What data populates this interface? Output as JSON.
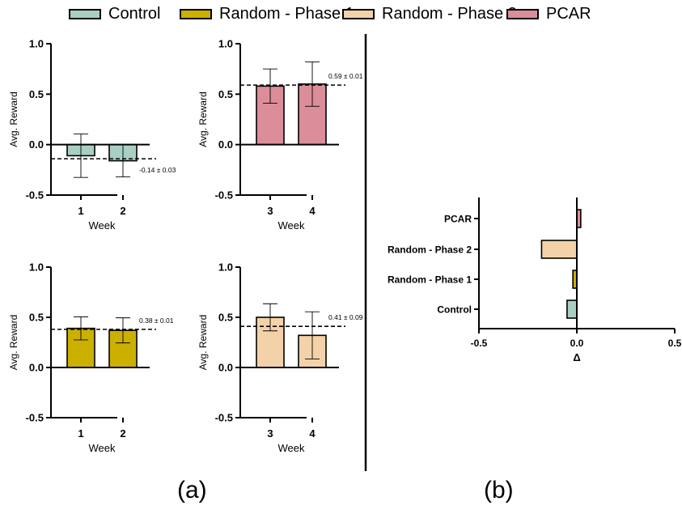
{
  "legend": [
    {
      "label": "Control",
      "color": "#a9cfc4"
    },
    {
      "label": "Random - Phase 1",
      "color": "#ccb000"
    },
    {
      "label": "Random - Phase 2",
      "color": "#f4d2a9"
    },
    {
      "label": "PCAR",
      "color": "#db8e99"
    }
  ],
  "captions": {
    "a": "(a)",
    "b": "(b)"
  },
  "chart_data": [
    {
      "type": "bar",
      "panel": "a-top-left",
      "categories": [
        "1",
        "2"
      ],
      "series": [
        {
          "name": "Control",
          "values": [
            -0.11,
            -0.16
          ],
          "errors": [
            0.215,
            0.16
          ]
        }
      ],
      "color": "#a9cfc4",
      "reference_line": {
        "value": -0.14,
        "label": "-0.14 ± 0.03"
      },
      "xlabel": "Week",
      "ylabel": "Avg. Reward",
      "ylim": [
        -0.5,
        1.0
      ],
      "yticks": [
        "-0.5",
        "0.0",
        "0.5",
        "1.0"
      ]
    },
    {
      "type": "bar",
      "panel": "a-top-right",
      "categories": [
        "3",
        "4"
      ],
      "series": [
        {
          "name": "PCAR",
          "values": [
            0.58,
            0.6
          ],
          "errors": [
            0.17,
            0.22
          ]
        }
      ],
      "color": "#db8e99",
      "reference_line": {
        "value": 0.59,
        "label": "0.59 ± 0.01"
      },
      "xlabel": "Week",
      "ylabel": "Avg. Reward",
      "ylim": [
        -0.5,
        1.0
      ],
      "yticks": [
        "-0.5",
        "0.0",
        "0.5",
        "1.0"
      ]
    },
    {
      "type": "bar",
      "panel": "a-bottom-left",
      "categories": [
        "1",
        "2"
      ],
      "series": [
        {
          "name": "Random - Phase 1",
          "values": [
            0.39,
            0.37
          ],
          "errors": [
            0.115,
            0.125
          ]
        }
      ],
      "color": "#ccb000",
      "reference_line": {
        "value": 0.38,
        "label": "0.38 ± 0.01"
      },
      "xlabel": "Week",
      "ylabel": "Avg. Reward",
      "ylim": [
        -0.5,
        1.0
      ],
      "yticks": [
        "-0.5",
        "0.0",
        "0.5",
        "1.0"
      ]
    },
    {
      "type": "bar",
      "panel": "a-bottom-right",
      "categories": [
        "3",
        "4"
      ],
      "series": [
        {
          "name": "Random - Phase 2",
          "values": [
            0.5,
            0.32
          ],
          "errors": [
            0.135,
            0.235
          ]
        }
      ],
      "color": "#f4d2a9",
      "reference_line": {
        "value": 0.41,
        "label": "0.41 ± 0.09"
      },
      "xlabel": "Week",
      "ylabel": "Avg. Reward",
      "ylim": [
        -0.5,
        1.0
      ],
      "yticks": [
        "-0.5",
        "0.0",
        "0.5",
        "1.0"
      ]
    },
    {
      "type": "bar",
      "panel": "b",
      "orientation": "horizontal",
      "categories": [
        "PCAR",
        "Random - Phase 2",
        "Random - Phase 1",
        "Control"
      ],
      "values": [
        0.02,
        -0.18,
        -0.02,
        -0.05
      ],
      "colors": [
        "#db8e99",
        "#f4d2a9",
        "#ccb000",
        "#a9cfc4"
      ],
      "xlabel": "Δ",
      "xlim": [
        -0.5,
        0.5
      ],
      "xticks": [
        "-0.5",
        "0.0",
        "0.5"
      ]
    }
  ]
}
